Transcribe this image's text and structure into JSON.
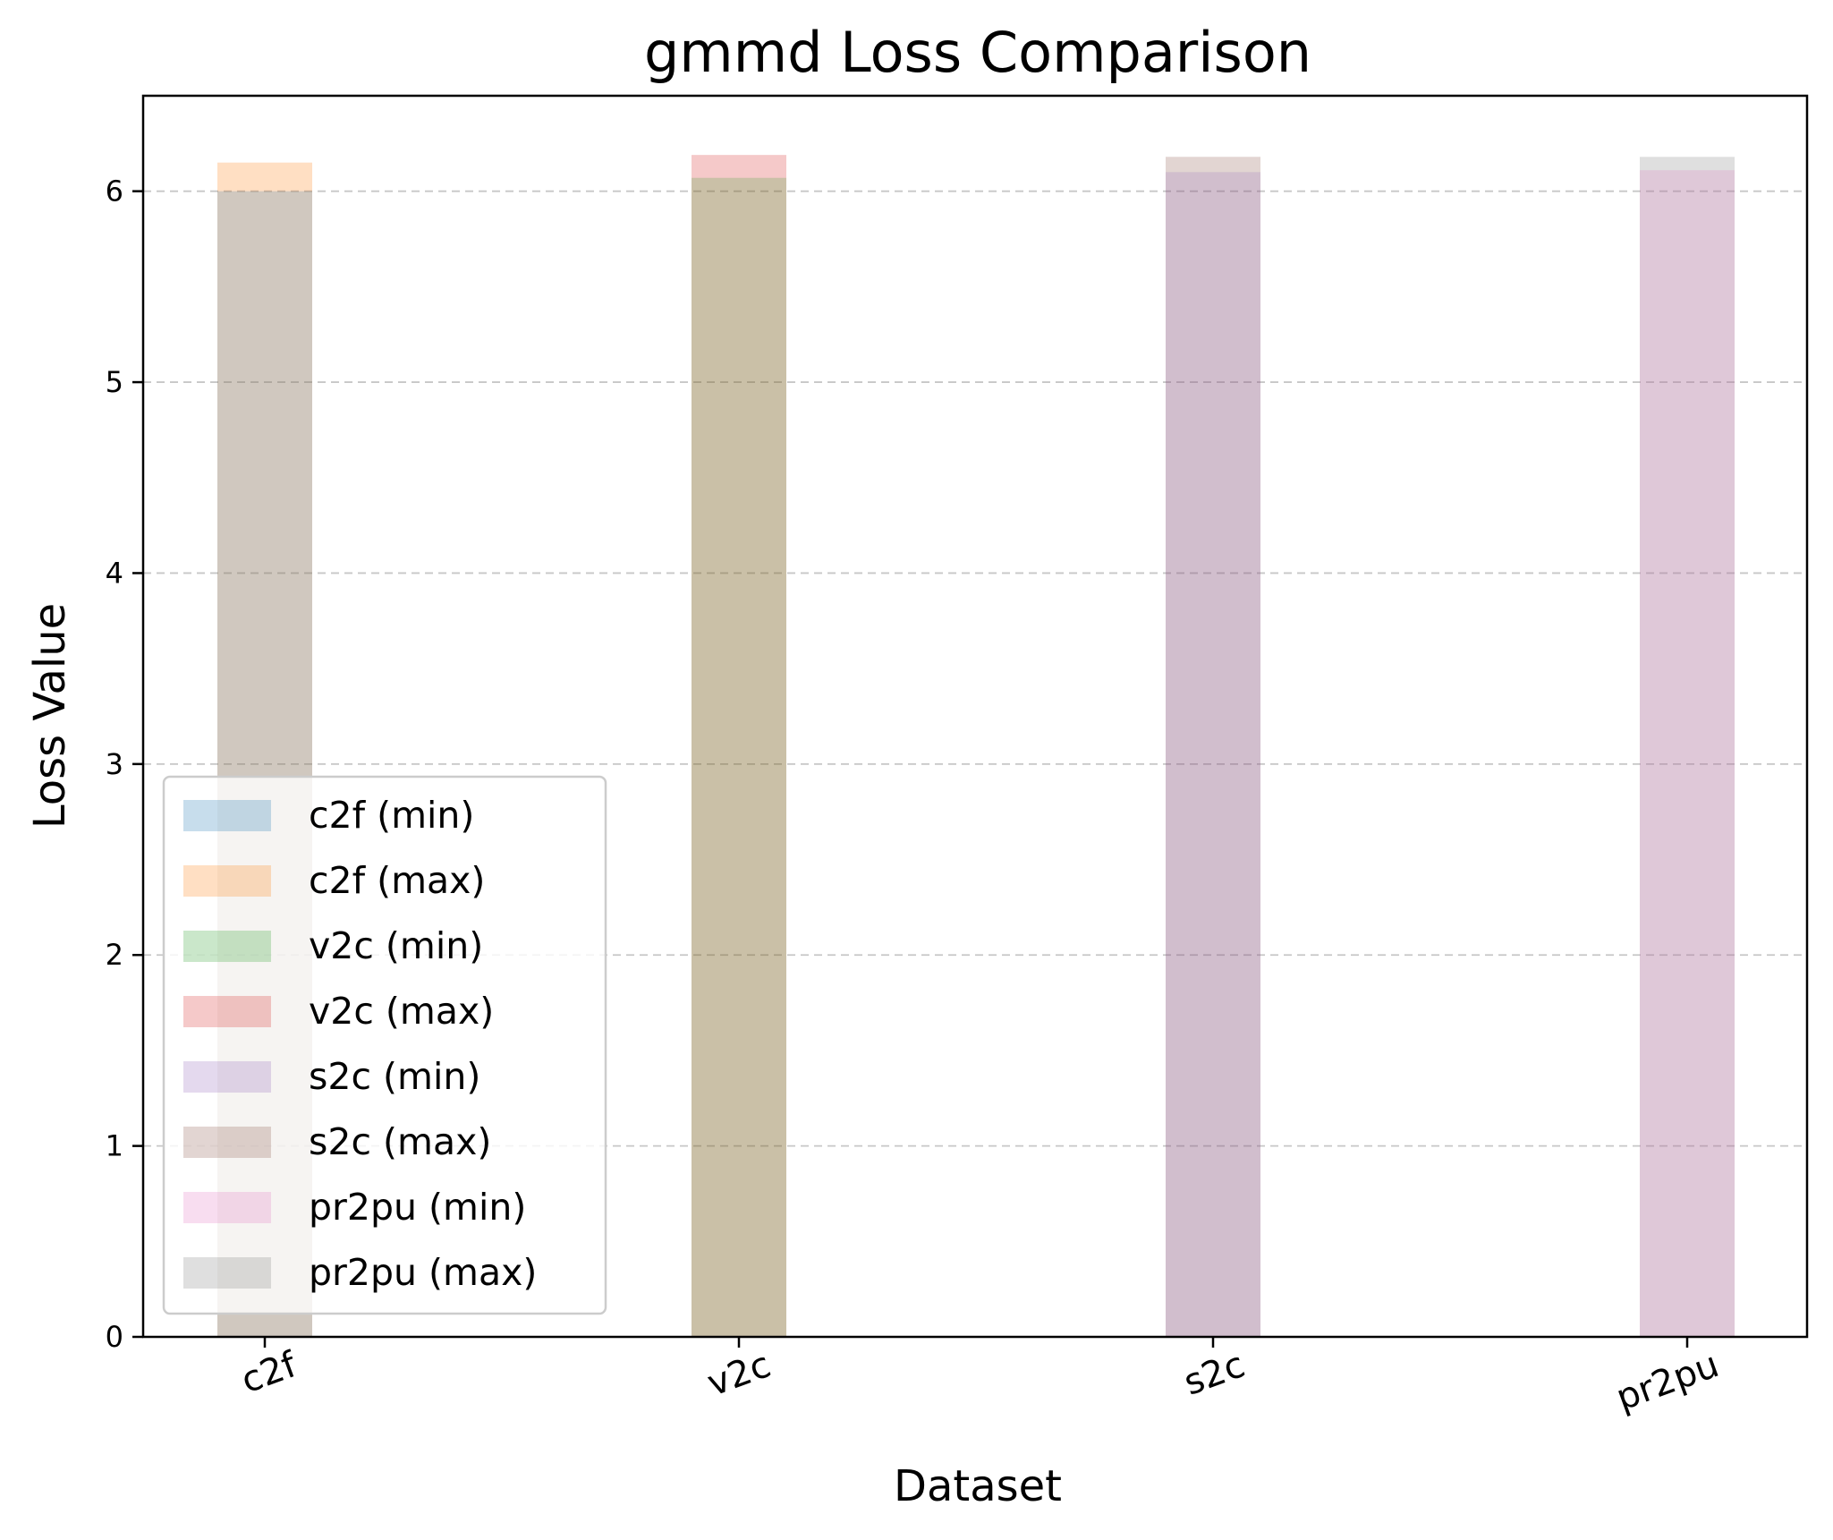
{
  "chart_data": {
    "type": "bar",
    "title": "gmmd Loss Comparison",
    "xlabel": "Dataset",
    "ylabel": "Loss Value",
    "categories": [
      "c2f",
      "v2c",
      "s2c",
      "pr2pu"
    ],
    "ylim": [
      0,
      6.5
    ],
    "yticks": [
      0,
      1,
      2,
      3,
      4,
      5,
      6
    ],
    "grid": "y-dashed",
    "legend_position": "lower-left",
    "series": [
      {
        "name": "c2f (min)",
        "category": "c2f",
        "value": 6.0,
        "color": "#1f77b4"
      },
      {
        "name": "c2f (max)",
        "category": "c2f",
        "value": 6.15,
        "color": "#ff7f0e"
      },
      {
        "name": "v2c (min)",
        "category": "v2c",
        "value": 6.07,
        "color": "#2ca02c"
      },
      {
        "name": "v2c (max)",
        "category": "v2c",
        "value": 6.19,
        "color": "#d62728"
      },
      {
        "name": "s2c (min)",
        "category": "s2c",
        "value": 6.1,
        "color": "#9467bd"
      },
      {
        "name": "s2c (max)",
        "category": "s2c",
        "value": 6.18,
        "color": "#8c564b"
      },
      {
        "name": "pr2pu (min)",
        "category": "pr2pu",
        "value": 6.11,
        "color": "#e377c2"
      },
      {
        "name": "pr2pu (max)",
        "category": "pr2pu",
        "value": 6.18,
        "color": "#7f7f7f"
      }
    ]
  }
}
